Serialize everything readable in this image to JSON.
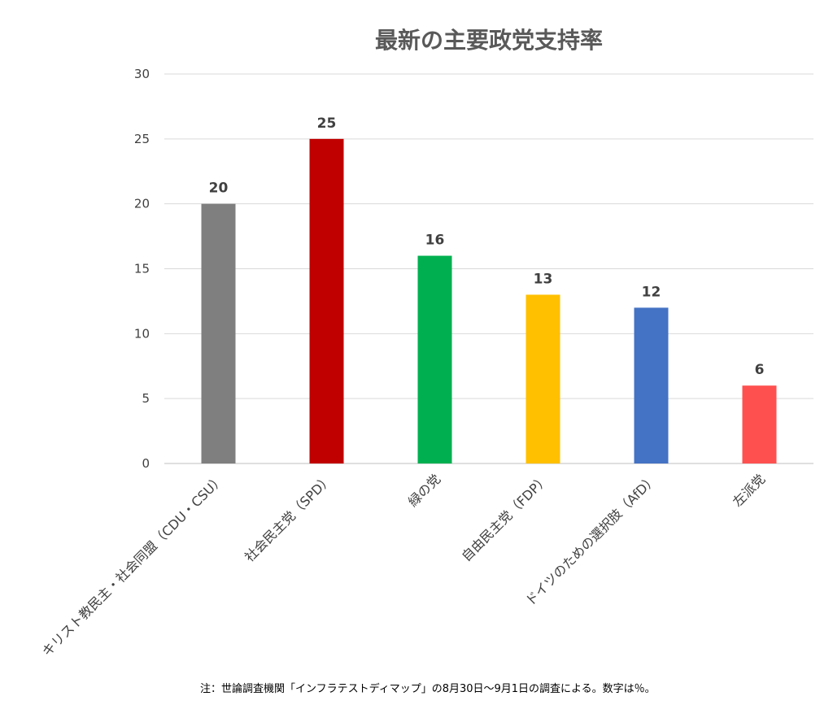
{
  "chart_data": {
    "type": "bar",
    "title": "最新の主要政党支持率",
    "categories": [
      "キリスト教民主・社会同盟（CDU・CSU）",
      "社会民主党（SPD）",
      "緑の党",
      "自由民主党（FDP）",
      "ドイツのための選択肢（AfD）",
      "左派党"
    ],
    "values": [
      20,
      25,
      16,
      13,
      12,
      6
    ],
    "colors": [
      "#7f7f7f",
      "#c00000",
      "#00b050",
      "#ffc000",
      "#4472c4",
      "#ff5050"
    ],
    "ylim": [
      0,
      30
    ],
    "yticks": [
      0,
      5,
      10,
      15,
      20,
      25,
      30
    ],
    "grid": true,
    "legend": "none",
    "data_labels": true
  },
  "footnote": "注：世論調査機関「インフラテストディマップ」の8月30日〜9月1日の調査による。数字は％。"
}
